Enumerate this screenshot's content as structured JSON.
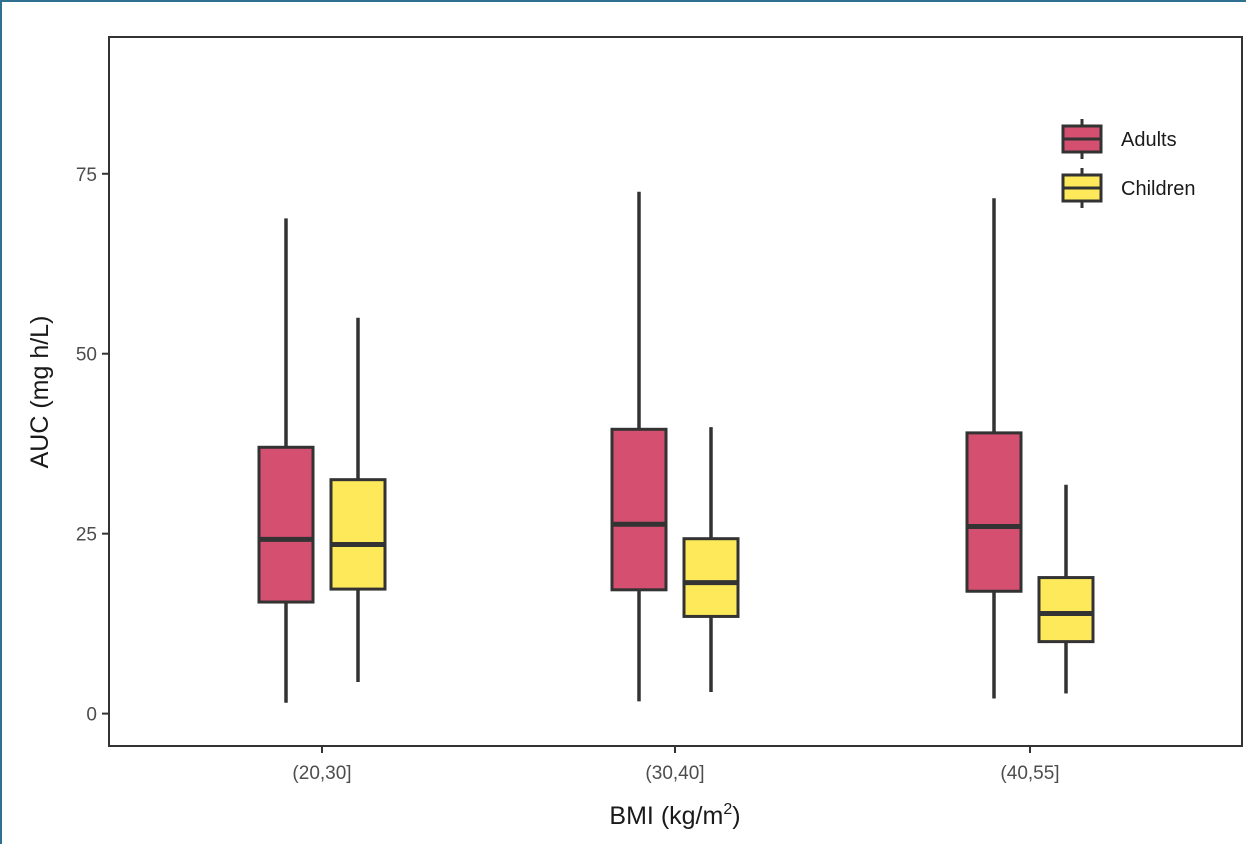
{
  "chart_data": {
    "type": "boxplot",
    "xlabel": "BMI (kg/m",
    "xlabel_superscript": "2",
    "xlabel_suffix": ")",
    "ylabel": "AUC (mg h/L)",
    "ylim": [
      -4.5,
      94
    ],
    "yticks": [
      0,
      25,
      50,
      75
    ],
    "categories": [
      "(20,30]",
      "(30,40]",
      "(40,55]"
    ],
    "legend_position": "top-right",
    "grid": false,
    "series": [
      {
        "name": "Adults",
        "color": "#d44f70",
        "boxes": [
          {
            "min": 1.5,
            "q1": 15.5,
            "median": 24.2,
            "q3": 37.0,
            "max": 68.8
          },
          {
            "min": 1.7,
            "q1": 17.2,
            "median": 26.3,
            "q3": 39.5,
            "max": 72.5
          },
          {
            "min": 2.1,
            "q1": 17.0,
            "median": 26.0,
            "q3": 39.0,
            "max": 71.6
          }
        ]
      },
      {
        "name": "Children",
        "color": "#fde95a",
        "boxes": [
          {
            "min": 4.4,
            "q1": 17.3,
            "median": 23.5,
            "q3": 32.5,
            "max": 55.0
          },
          {
            "min": 3.0,
            "q1": 13.5,
            "median": 18.2,
            "q3": 24.3,
            "max": 39.8
          },
          {
            "min": 2.8,
            "q1": 10.0,
            "median": 13.9,
            "q3": 18.9,
            "max": 31.8
          }
        ]
      }
    ]
  }
}
